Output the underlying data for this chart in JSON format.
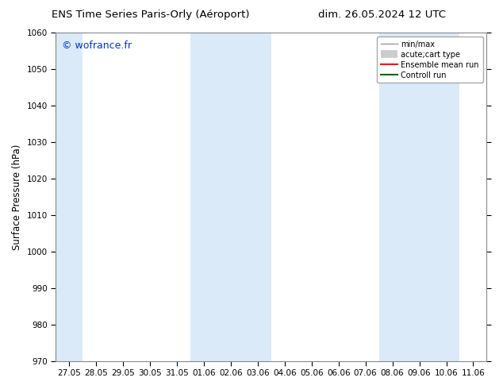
{
  "title_left": "ENS Time Series Paris-Orly (Aéroport)",
  "title_right": "dim. 26.05.2024 12 UTC",
  "ylabel": "Surface Pressure (hPa)",
  "ylim": [
    970,
    1060
  ],
  "yticks": [
    970,
    980,
    990,
    1000,
    1010,
    1020,
    1030,
    1040,
    1050,
    1060
  ],
  "xlabels": [
    "27.05",
    "28.05",
    "29.05",
    "30.05",
    "31.05",
    "01.06",
    "02.06",
    "03.06",
    "04.06",
    "05.06",
    "06.06",
    "07.06",
    "08.06",
    "09.06",
    "10.06",
    "11.06"
  ],
  "x_positions": [
    0,
    1,
    2,
    3,
    4,
    5,
    6,
    7,
    8,
    9,
    10,
    11,
    12,
    13,
    14,
    15
  ],
  "shaded_bands": [
    {
      "xmin": 0,
      "xmax": 1
    },
    {
      "xmin": 5,
      "xmax": 8
    },
    {
      "xmin": 12,
      "xmax": 15
    }
  ],
  "shade_color": "#dbeaf8",
  "watermark_text": "© wofrance.fr",
  "watermark_color": "#0033cc",
  "legend_entries": [
    {
      "label": "min/max"
    },
    {
      "label": "acute;cart type"
    },
    {
      "label": "Ensemble mean run"
    },
    {
      "label": "Controll run"
    }
  ],
  "bg_color": "#ffffff",
  "plot_bg_color": "#ffffff",
  "spine_color": "#888888",
  "tick_label_fontsize": 7.5,
  "axis_label_fontsize": 8.5,
  "title_fontsize": 9.5,
  "watermark_fontsize": 9
}
